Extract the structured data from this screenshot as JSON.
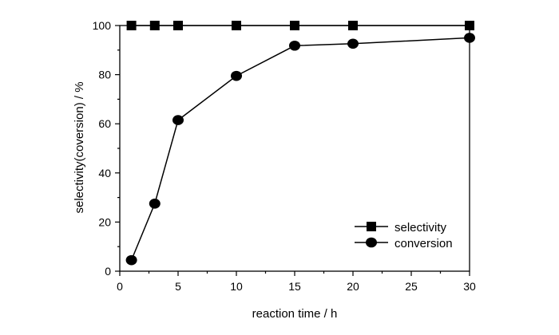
{
  "chart_data": {
    "type": "line",
    "title": "",
    "xlabel": "reaction time / h",
    "ylabel": "selectivity(coversion) / %",
    "xlim": [
      0,
      30
    ],
    "ylim": [
      0,
      100
    ],
    "xticks": [
      0,
      5,
      10,
      15,
      20,
      25,
      30
    ],
    "yticks": [
      0,
      20,
      40,
      60,
      80,
      100
    ],
    "grid": false,
    "legend_position": "bottom-right",
    "series": [
      {
        "name": "selectivity",
        "marker": "square",
        "color": "#000000",
        "x": [
          1,
          3,
          5,
          10,
          15,
          20,
          30
        ],
        "y": [
          100,
          100,
          100,
          100,
          100,
          100,
          100
        ]
      },
      {
        "name": "conversion",
        "marker": "circle",
        "color": "#000000",
        "x": [
          1,
          3,
          5,
          10,
          15,
          20,
          30
        ],
        "y": [
          4.5,
          27.5,
          61.5,
          79.5,
          91.8,
          92.6,
          95
        ]
      }
    ]
  }
}
